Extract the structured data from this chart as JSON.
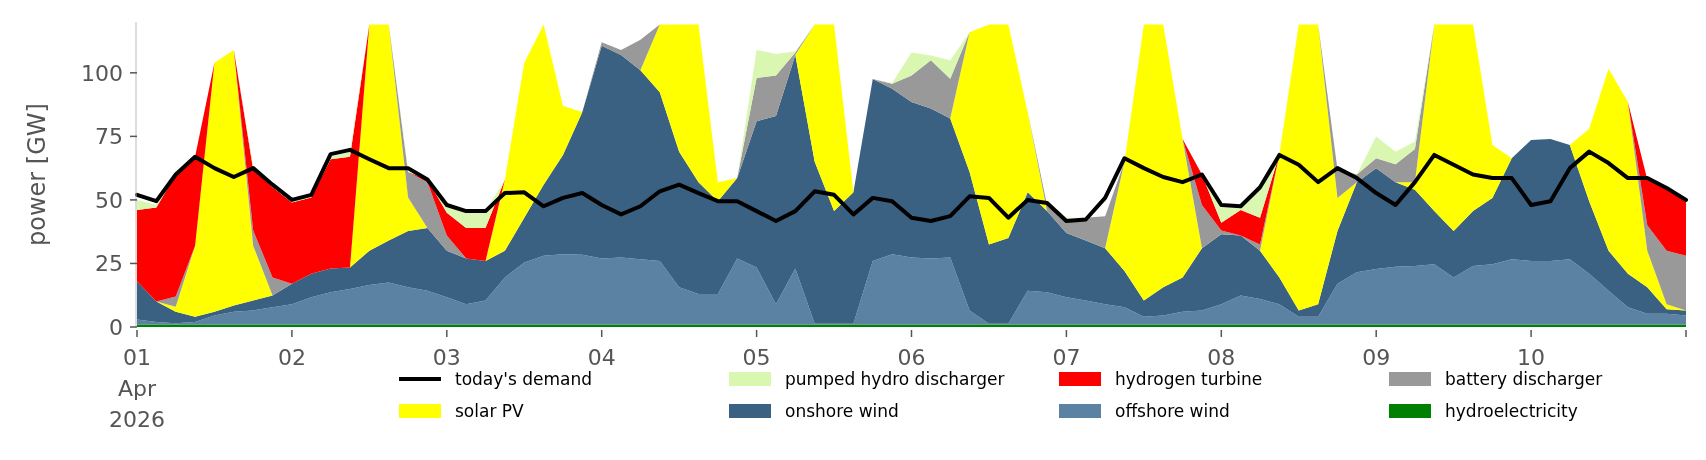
{
  "chart_data": {
    "type": "area",
    "stacked": true,
    "ylabel": "power [GW]",
    "ylim": [
      0,
      120
    ],
    "yticks": [
      0,
      25,
      50,
      75,
      100
    ],
    "xlim": [
      "2026-04-01",
      "2026-04-11"
    ],
    "xticks": [
      {
        "value": "2026-04-01",
        "label": "01\nApr\n2026"
      },
      {
        "value": "2026-04-02",
        "label": "02"
      },
      {
        "value": "2026-04-03",
        "label": "03"
      },
      {
        "value": "2026-04-04",
        "label": "04"
      },
      {
        "value": "2026-04-05",
        "label": "05"
      },
      {
        "value": "2026-04-06",
        "label": "06"
      },
      {
        "value": "2026-04-07",
        "label": "07"
      },
      {
        "value": "2026-04-08",
        "label": "08"
      },
      {
        "value": "2026-04-09",
        "label": "09"
      },
      {
        "value": "2026-04-10",
        "label": "10"
      },
      {
        "value": "2026-04-11",
        "label": null
      }
    ],
    "legend": "bottom",
    "grid": false,
    "x": [
      "2026-04-01T00:00",
      "2026-04-01T03:00",
      "2026-04-01T06:00",
      "2026-04-01T09:00",
      "2026-04-01T12:00",
      "2026-04-01T15:00",
      "2026-04-01T18:00",
      "2026-04-01T21:00",
      "2026-04-02T00:00",
      "2026-04-02T03:00",
      "2026-04-02T06:00",
      "2026-04-02T09:00",
      "2026-04-02T12:00",
      "2026-04-02T15:00",
      "2026-04-02T18:00",
      "2026-04-02T21:00",
      "2026-04-03T00:00",
      "2026-04-03T03:00",
      "2026-04-03T06:00",
      "2026-04-03T09:00",
      "2026-04-03T12:00",
      "2026-04-03T15:00",
      "2026-04-03T18:00",
      "2026-04-03T21:00",
      "2026-04-04T00:00",
      "2026-04-04T03:00",
      "2026-04-04T06:00",
      "2026-04-04T09:00",
      "2026-04-04T12:00",
      "2026-04-04T15:00",
      "2026-04-04T18:00",
      "2026-04-04T21:00",
      "2026-04-05T00:00",
      "2026-04-05T03:00",
      "2026-04-05T06:00",
      "2026-04-05T09:00",
      "2026-04-05T12:00",
      "2026-04-05T15:00",
      "2026-04-05T18:00",
      "2026-04-05T21:00",
      "2026-04-06T00:00",
      "2026-04-06T03:00",
      "2026-04-06T06:00",
      "2026-04-06T09:00",
      "2026-04-06T12:00",
      "2026-04-06T15:00",
      "2026-04-06T18:00",
      "2026-04-06T21:00",
      "2026-04-07T00:00",
      "2026-04-07T03:00",
      "2026-04-07T06:00",
      "2026-04-07T09:00",
      "2026-04-07T12:00",
      "2026-04-07T15:00",
      "2026-04-07T18:00",
      "2026-04-07T21:00",
      "2026-04-08T00:00",
      "2026-04-08T03:00",
      "2026-04-08T06:00",
      "2026-04-08T09:00",
      "2026-04-08T12:00",
      "2026-04-08T15:00",
      "2026-04-08T18:00",
      "2026-04-08T21:00",
      "2026-04-09T00:00",
      "2026-04-09T03:00",
      "2026-04-09T06:00",
      "2026-04-09T09:00",
      "2026-04-09T12:00",
      "2026-04-09T15:00",
      "2026-04-09T18:00",
      "2026-04-09T21:00",
      "2026-04-10T00:00",
      "2026-04-10T03:00",
      "2026-04-10T06:00",
      "2026-04-10T09:00",
      "2026-04-10T12:00",
      "2026-04-10T15:00",
      "2026-04-10T18:00",
      "2026-04-10T21:00",
      "2026-04-11T00:00"
    ],
    "series": [
      {
        "name": "hydroelectricity",
        "color": "#008000",
        "values": [
          1,
          1,
          1,
          1,
          1,
          1,
          1,
          1,
          1,
          1,
          1,
          1,
          1,
          1,
          1,
          1,
          1,
          1,
          1,
          1,
          1,
          1,
          1,
          1,
          1,
          1,
          1,
          1,
          1,
          1,
          1,
          1,
          1,
          1,
          1,
          1,
          1,
          1,
          1,
          1,
          1,
          1,
          1,
          1,
          1,
          1,
          1,
          1,
          1,
          1,
          1,
          1,
          1,
          1,
          1,
          1,
          1,
          1,
          1,
          1,
          1,
          1,
          1,
          1,
          1,
          1,
          1,
          1,
          1,
          1,
          1,
          1,
          1,
          1,
          1,
          1,
          1,
          1,
          1,
          1,
          1
        ]
      },
      {
        "name": "offshore wind",
        "color": "#5b81a3",
        "values": [
          2,
          1,
          0.5,
          1,
          3.5,
          5,
          5.5,
          6.8,
          8,
          10.7,
          12.7,
          14,
          15.5,
          16.5,
          14.6,
          13.3,
          10.7,
          8,
          9.4,
          18.5,
          24.4,
          27,
          27.6,
          27.4,
          26,
          26.3,
          25.7,
          25,
          14.6,
          12,
          12,
          26,
          22.4,
          8,
          22,
          0.3,
          0.3,
          0.3,
          25,
          27.6,
          26.3,
          26,
          26.3,
          5.5,
          0.3,
          0.3,
          13.3,
          12.7,
          10.7,
          9.4,
          8,
          6.8,
          3,
          3.5,
          5,
          5.5,
          8,
          11.4,
          10,
          8,
          3,
          3,
          16,
          20.5,
          21.8,
          22.7,
          23,
          23.7,
          18.5,
          23,
          23.7,
          25.7,
          25,
          25,
          25.7,
          20,
          13.3,
          6.8,
          4.2,
          4.2,
          3.5
        ]
      },
      {
        "name": "onshore wind",
        "color": "#3b6182",
        "values": [
          15,
          8,
          4.5,
          2,
          1.5,
          2.5,
          3.9,
          4.6,
          8,
          9.3,
          9.3,
          8.4,
          13.5,
          16.5,
          22.2,
          24.7,
          18.3,
          18,
          15.6,
          10.5,
          17.6,
          28,
          39.1,
          56.2,
          83.7,
          79.7,
          74.3,
          66.4,
          53.4,
          44,
          36.5,
          31.6,
          57.6,
          74,
          84,
          63.7,
          44.3,
          51.7,
          71.6,
          65.1,
          61.2,
          59,
          54.7,
          54.5,
          31.2,
          33.7,
          38.7,
          31.9,
          25.3,
          23.6,
          22,
          14.2,
          6.4,
          11.1,
          13.5,
          24.5,
          27.5,
          23.6,
          19,
          10.5,
          2.5,
          5,
          20.8,
          35.5,
          39.7,
          33.3,
          30,
          20.9,
          18.3,
          21.6,
          26.1,
          39.7,
          47.6,
          48,
          44.9,
          28.5,
          15.7,
          13.2,
          10.4,
          1.8,
          2
        ]
      },
      {
        "name": "solar PV",
        "color": "#ffff00",
        "values": [
          0,
          0,
          2,
          28,
          98,
          100.5,
          21.6,
          0,
          0,
          0,
          0,
          0,
          89,
          85,
          13.2,
          0,
          0,
          0,
          0,
          28,
          61,
          63,
          19.3,
          0,
          0,
          0,
          0,
          26.6,
          50,
          62,
          7.5,
          0,
          0,
          0,
          0,
          54,
          73.4,
          0,
          0,
          0,
          0,
          0,
          0,
          55,
          86.5,
          84,
          31.6,
          0,
          0,
          0,
          0,
          43,
          108.6,
          103.4,
          54.5,
          0,
          0,
          0,
          0,
          48.5,
          112.5,
          110,
          13,
          0,
          0,
          0,
          3,
          73.4,
          81.2,
          73.4,
          20.8,
          0,
          0,
          0,
          0,
          28.5,
          71.6,
          67.5,
          14.4,
          2,
          0
        ]
      },
      {
        "name": "battery discharger",
        "color": "#999999",
        "values": [
          0,
          0,
          4,
          0,
          0,
          0,
          6,
          7.1,
          0,
          0,
          0,
          0,
          0,
          0,
          10,
          18,
          6,
          0,
          0,
          0,
          0,
          0,
          0,
          0,
          1.3,
          2,
          12,
          0,
          0,
          0,
          0,
          0,
          17,
          16,
          1,
          0,
          0,
          0,
          0,
          2,
          10.5,
          19,
          15.7,
          0,
          0,
          0,
          0,
          2.4,
          5,
          9,
          12.6,
          0,
          0,
          0,
          0,
          17,
          1.5,
          0,
          2.5,
          0,
          0,
          0,
          11.2,
          3,
          3.9,
          7,
          13,
          0,
          0,
          0,
          0,
          0,
          0,
          0,
          0,
          0,
          0,
          0,
          10,
          21,
          21.5
        ]
      },
      {
        "name": "hydrogen turbine",
        "color": "#ff0000",
        "values": [
          28,
          37,
          48,
          35,
          0,
          0,
          24,
          35.5,
          32,
          30,
          43,
          43.6,
          0,
          0,
          0,
          1,
          9,
          12,
          13,
          0,
          0,
          0,
          0,
          0,
          0,
          0,
          0,
          0,
          0,
          0,
          0,
          0,
          0,
          0,
          0,
          0,
          0,
          0,
          0,
          0,
          0,
          0,
          0,
          0,
          0,
          0,
          0,
          0,
          0,
          0,
          0,
          0,
          0,
          0,
          0,
          12,
          3,
          10,
          10.5,
          0,
          0,
          0,
          0,
          0,
          0,
          0,
          0,
          0,
          0,
          0,
          0,
          0,
          0,
          0,
          0,
          0,
          0,
          0,
          18,
          25,
          22
        ]
      },
      {
        "name": "pumped hydro discharger",
        "color": "#d9f7b0",
        "values": [
          4,
          1,
          1,
          0,
          0,
          0,
          1,
          1,
          1.5,
          1,
          1,
          2,
          0,
          0,
          1,
          0,
          2,
          6.5,
          6.5,
          0,
          0,
          0,
          0,
          0,
          0,
          0,
          0,
          0,
          0,
          0,
          0,
          0,
          11,
          8.4,
          0.5,
          0,
          0,
          0,
          0,
          0.3,
          9,
          1.8,
          7.3,
          0,
          0,
          0,
          0,
          0,
          1,
          0,
          0,
          0,
          0,
          0,
          0,
          0,
          6,
          1,
          11,
          0,
          0,
          0,
          0,
          0,
          8.6,
          5,
          3,
          0,
          0,
          0,
          0,
          0,
          0,
          0,
          0,
          0,
          0,
          0,
          0,
          0,
          0
        ]
      },
      {
        "name": "today's demand",
        "type": "line",
        "color": "#000000",
        "values": [
          52,
          49.5,
          60,
          67,
          62.5,
          59,
          62.5,
          56,
          50,
          52,
          68,
          69.7,
          66,
          62.5,
          62.5,
          58,
          48,
          45.6,
          45.6,
          52.7,
          53,
          47.5,
          50.8,
          52.7,
          48,
          44.3,
          47.5,
          53.4,
          56,
          52.7,
          49.5,
          49.5,
          45.6,
          41.7,
          45.6,
          53.4,
          52,
          44.3,
          50.8,
          49.5,
          43,
          41.7,
          43.6,
          51.4,
          50.8,
          43,
          50,
          48.8,
          41.7,
          42.3,
          50.8,
          66.4,
          62.5,
          59,
          57,
          60,
          48,
          47.5,
          55,
          67.7,
          63.8,
          57,
          62.5,
          58.6,
          52.7,
          48,
          57,
          67.7,
          63.8,
          60,
          58.6,
          58.6,
          48,
          49.5,
          62.5,
          69,
          64.5,
          58.6,
          58.6,
          54.7,
          50
        ]
      }
    ]
  }
}
